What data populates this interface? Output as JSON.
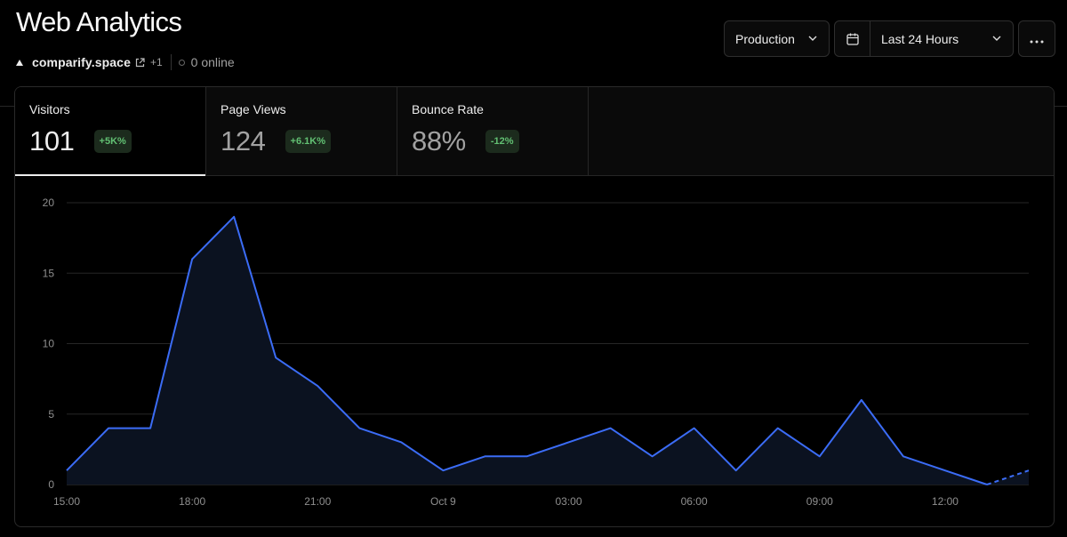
{
  "header": {
    "title": "Web Analytics",
    "project": "comparify.space",
    "extra_projects": "+1",
    "online": "0 online"
  },
  "controls": {
    "environment": "Production",
    "range": "Last 24 Hours",
    "icons": {
      "environment": "chevron-down-icon",
      "calendar": "calendar-icon",
      "range": "chevron-down-icon",
      "more": "more-horizontal-icon"
    }
  },
  "tabs": [
    {
      "label": "Visitors",
      "value": "101",
      "delta": "+5K%"
    },
    {
      "label": "Page Views",
      "value": "124",
      "delta": "+6.1K%"
    },
    {
      "label": "Bounce Rate",
      "value": "88%",
      "delta": "-12%"
    }
  ],
  "colors": {
    "line": "#3b6cf6",
    "area": "#0b1220",
    "badge_bg": "#1c2b1d",
    "badge_text": "#62c073"
  },
  "chart_data": {
    "type": "area",
    "series": [
      {
        "values": [
          1,
          4,
          4,
          16,
          19,
          9,
          7,
          4,
          3,
          1,
          2,
          2,
          3,
          4,
          2,
          4,
          1,
          4,
          2,
          6,
          2,
          1,
          0,
          1
        ],
        "dashed_from_index": 22
      }
    ],
    "x_tick_labels": [
      "15:00",
      "18:00",
      "21:00",
      "Oct 9",
      "03:00",
      "06:00",
      "09:00",
      "12:00"
    ],
    "x_tick_hour_indices": [
      0,
      3,
      6,
      9,
      12,
      15,
      18,
      21
    ],
    "y_ticks": [
      0,
      5,
      10,
      15,
      20
    ],
    "ylim": [
      0,
      20
    ],
    "grid": true
  }
}
